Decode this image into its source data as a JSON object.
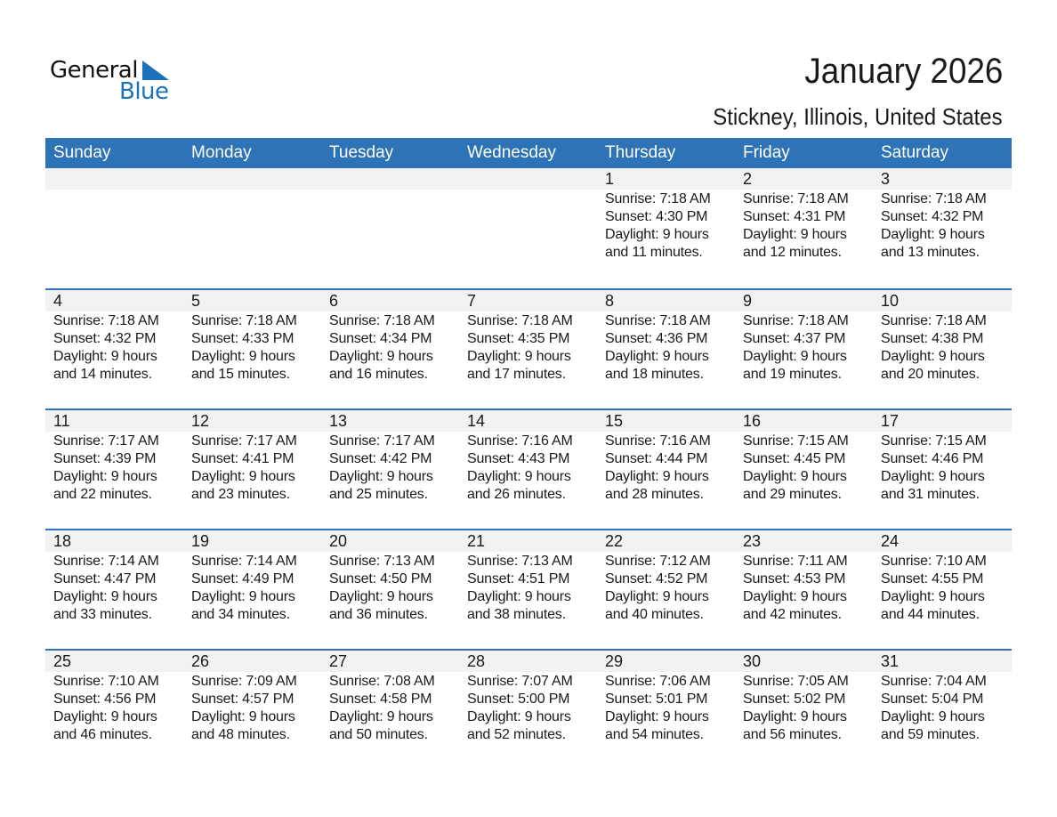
{
  "logo": {
    "word1": "General",
    "word2": "Blue",
    "color": "#1a72bb"
  },
  "title": "January 2026",
  "subtitle": "Stickney, Illinois, United States",
  "accent_color": "#2e73b5",
  "weekdays": [
    "Sunday",
    "Monday",
    "Tuesday",
    "Wednesday",
    "Thursday",
    "Friday",
    "Saturday"
  ],
  "weeks": [
    [
      null,
      null,
      null,
      null,
      {
        "day": "1",
        "sunrise": "Sunrise: 7:18 AM",
        "sunset": "Sunset: 4:30 PM",
        "daylight": "Daylight: 9 hours",
        "minutes": "and 11 minutes."
      },
      {
        "day": "2",
        "sunrise": "Sunrise: 7:18 AM",
        "sunset": "Sunset: 4:31 PM",
        "daylight": "Daylight: 9 hours",
        "minutes": "and 12 minutes."
      },
      {
        "day": "3",
        "sunrise": "Sunrise: 7:18 AM",
        "sunset": "Sunset: 4:32 PM",
        "daylight": "Daylight: 9 hours",
        "minutes": "and 13 minutes."
      }
    ],
    [
      {
        "day": "4",
        "sunrise": "Sunrise: 7:18 AM",
        "sunset": "Sunset: 4:32 PM",
        "daylight": "Daylight: 9 hours",
        "minutes": "and 14 minutes."
      },
      {
        "day": "5",
        "sunrise": "Sunrise: 7:18 AM",
        "sunset": "Sunset: 4:33 PM",
        "daylight": "Daylight: 9 hours",
        "minutes": "and 15 minutes."
      },
      {
        "day": "6",
        "sunrise": "Sunrise: 7:18 AM",
        "sunset": "Sunset: 4:34 PM",
        "daylight": "Daylight: 9 hours",
        "minutes": "and 16 minutes."
      },
      {
        "day": "7",
        "sunrise": "Sunrise: 7:18 AM",
        "sunset": "Sunset: 4:35 PM",
        "daylight": "Daylight: 9 hours",
        "minutes": "and 17 minutes."
      },
      {
        "day": "8",
        "sunrise": "Sunrise: 7:18 AM",
        "sunset": "Sunset: 4:36 PM",
        "daylight": "Daylight: 9 hours",
        "minutes": "and 18 minutes."
      },
      {
        "day": "9",
        "sunrise": "Sunrise: 7:18 AM",
        "sunset": "Sunset: 4:37 PM",
        "daylight": "Daylight: 9 hours",
        "minutes": "and 19 minutes."
      },
      {
        "day": "10",
        "sunrise": "Sunrise: 7:18 AM",
        "sunset": "Sunset: 4:38 PM",
        "daylight": "Daylight: 9 hours",
        "minutes": "and 20 minutes."
      }
    ],
    [
      {
        "day": "11",
        "sunrise": "Sunrise: 7:17 AM",
        "sunset": "Sunset: 4:39 PM",
        "daylight": "Daylight: 9 hours",
        "minutes": "and 22 minutes."
      },
      {
        "day": "12",
        "sunrise": "Sunrise: 7:17 AM",
        "sunset": "Sunset: 4:41 PM",
        "daylight": "Daylight: 9 hours",
        "minutes": "and 23 minutes."
      },
      {
        "day": "13",
        "sunrise": "Sunrise: 7:17 AM",
        "sunset": "Sunset: 4:42 PM",
        "daylight": "Daylight: 9 hours",
        "minutes": "and 25 minutes."
      },
      {
        "day": "14",
        "sunrise": "Sunrise: 7:16 AM",
        "sunset": "Sunset: 4:43 PM",
        "daylight": "Daylight: 9 hours",
        "minutes": "and 26 minutes."
      },
      {
        "day": "15",
        "sunrise": "Sunrise: 7:16 AM",
        "sunset": "Sunset: 4:44 PM",
        "daylight": "Daylight: 9 hours",
        "minutes": "and 28 minutes."
      },
      {
        "day": "16",
        "sunrise": "Sunrise: 7:15 AM",
        "sunset": "Sunset: 4:45 PM",
        "daylight": "Daylight: 9 hours",
        "minutes": "and 29 minutes."
      },
      {
        "day": "17",
        "sunrise": "Sunrise: 7:15 AM",
        "sunset": "Sunset: 4:46 PM",
        "daylight": "Daylight: 9 hours",
        "minutes": "and 31 minutes."
      }
    ],
    [
      {
        "day": "18",
        "sunrise": "Sunrise: 7:14 AM",
        "sunset": "Sunset: 4:47 PM",
        "daylight": "Daylight: 9 hours",
        "minutes": "and 33 minutes."
      },
      {
        "day": "19",
        "sunrise": "Sunrise: 7:14 AM",
        "sunset": "Sunset: 4:49 PM",
        "daylight": "Daylight: 9 hours",
        "minutes": "and 34 minutes."
      },
      {
        "day": "20",
        "sunrise": "Sunrise: 7:13 AM",
        "sunset": "Sunset: 4:50 PM",
        "daylight": "Daylight: 9 hours",
        "minutes": "and 36 minutes."
      },
      {
        "day": "21",
        "sunrise": "Sunrise: 7:13 AM",
        "sunset": "Sunset: 4:51 PM",
        "daylight": "Daylight: 9 hours",
        "minutes": "and 38 minutes."
      },
      {
        "day": "22",
        "sunrise": "Sunrise: 7:12 AM",
        "sunset": "Sunset: 4:52 PM",
        "daylight": "Daylight: 9 hours",
        "minutes": "and 40 minutes."
      },
      {
        "day": "23",
        "sunrise": "Sunrise: 7:11 AM",
        "sunset": "Sunset: 4:53 PM",
        "daylight": "Daylight: 9 hours",
        "minutes": "and 42 minutes."
      },
      {
        "day": "24",
        "sunrise": "Sunrise: 7:10 AM",
        "sunset": "Sunset: 4:55 PM",
        "daylight": "Daylight: 9 hours",
        "minutes": "and 44 minutes."
      }
    ],
    [
      {
        "day": "25",
        "sunrise": "Sunrise: 7:10 AM",
        "sunset": "Sunset: 4:56 PM",
        "daylight": "Daylight: 9 hours",
        "minutes": "and 46 minutes."
      },
      {
        "day": "26",
        "sunrise": "Sunrise: 7:09 AM",
        "sunset": "Sunset: 4:57 PM",
        "daylight": "Daylight: 9 hours",
        "minutes": "and 48 minutes."
      },
      {
        "day": "27",
        "sunrise": "Sunrise: 7:08 AM",
        "sunset": "Sunset: 4:58 PM",
        "daylight": "Daylight: 9 hours",
        "minutes": "and 50 minutes."
      },
      {
        "day": "28",
        "sunrise": "Sunrise: 7:07 AM",
        "sunset": "Sunset: 5:00 PM",
        "daylight": "Daylight: 9 hours",
        "minutes": "and 52 minutes."
      },
      {
        "day": "29",
        "sunrise": "Sunrise: 7:06 AM",
        "sunset": "Sunset: 5:01 PM",
        "daylight": "Daylight: 9 hours",
        "minutes": "and 54 minutes."
      },
      {
        "day": "30",
        "sunrise": "Sunrise: 7:05 AM",
        "sunset": "Sunset: 5:02 PM",
        "daylight": "Daylight: 9 hours",
        "minutes": "and 56 minutes."
      },
      {
        "day": "31",
        "sunrise": "Sunrise: 7:04 AM",
        "sunset": "Sunset: 5:04 PM",
        "daylight": "Daylight: 9 hours",
        "minutes": "and 59 minutes."
      }
    ]
  ]
}
